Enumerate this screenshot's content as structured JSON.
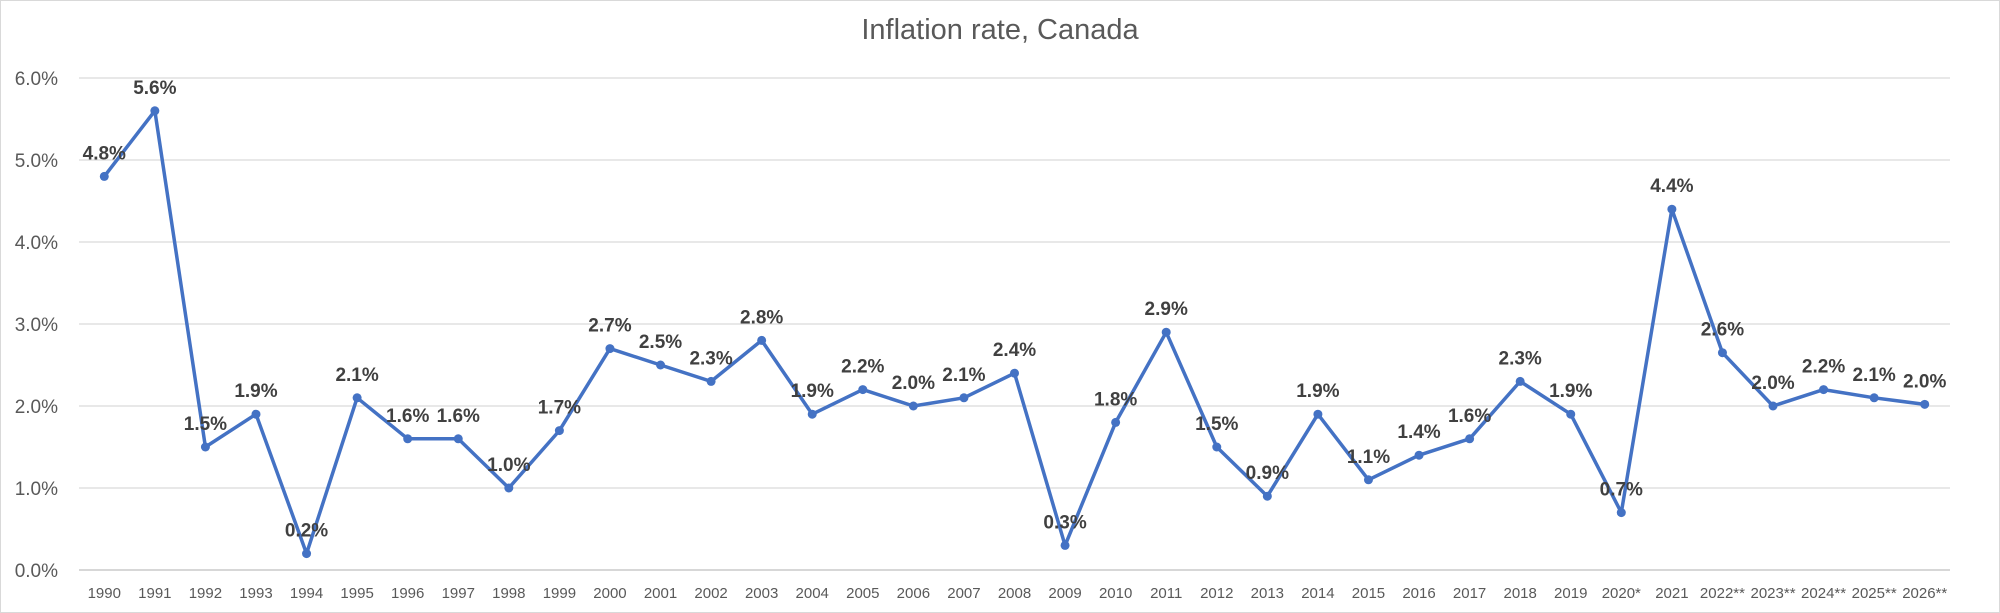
{
  "chart_data": {
    "type": "line",
    "title": "Inflation rate, Canada",
    "xlabel": "",
    "ylabel": "",
    "categories": [
      "1990",
      "1991",
      "1992",
      "1993",
      "1994",
      "1995",
      "1996",
      "1997",
      "1998",
      "1999",
      "2000",
      "2001",
      "2002",
      "2003",
      "2004",
      "2005",
      "2006",
      "2007",
      "2008",
      "2009",
      "2010",
      "2011",
      "2012",
      "2013",
      "2014",
      "2015",
      "2016",
      "2017",
      "2018",
      "2019",
      "2020*",
      "2021",
      "2022**",
      "2023**",
      "2024**",
      "2025**",
      "2026**"
    ],
    "series": [
      {
        "values": [
          4.8,
          5.6,
          1.5,
          1.9,
          0.2,
          2.1,
          1.6,
          1.6,
          1.0,
          1.7,
          2.7,
          2.5,
          2.3,
          2.8,
          1.9,
          2.2,
          2.0,
          2.1,
          2.4,
          0.3,
          1.8,
          2.9,
          1.5,
          0.9,
          1.9,
          1.1,
          1.4,
          1.6,
          2.3,
          1.9,
          0.7,
          4.4,
          2.65,
          2.0,
          2.2,
          2.1,
          2.02
        ],
        "labels": [
          "4.8%",
          "5.6%",
          "1.5%",
          "1.9%",
          "0.2%",
          "2.1%",
          "1.6%",
          "1.6%",
          "1.0%",
          "1.7%",
          "2.7%",
          "2.5%",
          "2.3%",
          "2.8%",
          "1.9%",
          "2.2%",
          "2.0%",
          "2.1%",
          "2.4%",
          "0.3%",
          "1.8%",
          "2.9%",
          "1.5%",
          "0.9%",
          "1.9%",
          "1.1%",
          "1.4%",
          "1.6%",
          "2.3%",
          "1.9%",
          "0.7%",
          "4.4%",
          "2.6%",
          "2.0%",
          "2.2%",
          "2.1%",
          "2.0%"
        ],
        "color": "#4472c4"
      }
    ],
    "yticks": [
      "0.0%",
      "1.0%",
      "2.0%",
      "3.0%",
      "4.0%",
      "5.0%",
      "6.0%"
    ],
    "ylim": [
      0,
      6
    ],
    "grid": true,
    "legend": "none"
  }
}
